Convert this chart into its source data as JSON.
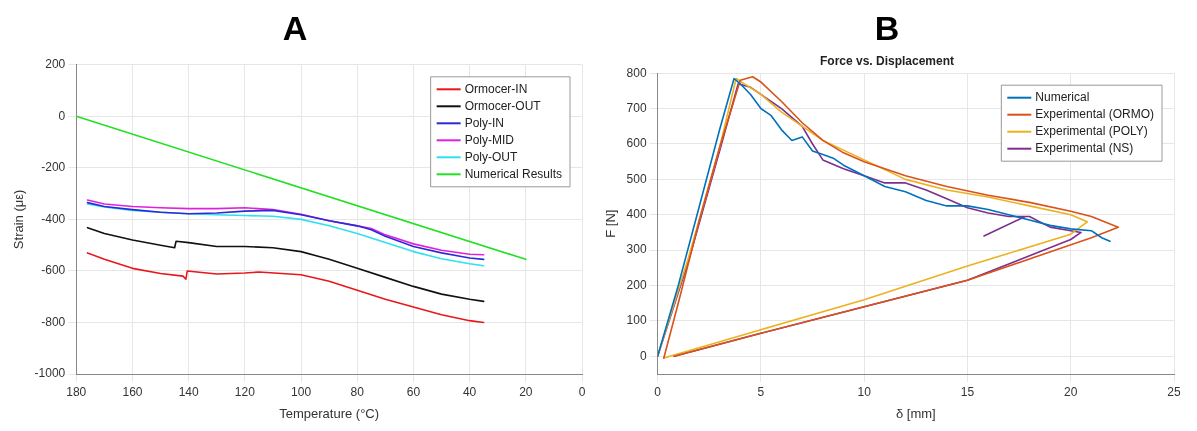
{
  "chart_data": [
    {
      "type": "line",
      "title": "A",
      "xlabel": "Temperature (°C)",
      "ylabel": "Strain (με)",
      "xlim": [
        180,
        0
      ],
      "xticks": [
        180,
        160,
        140,
        120,
        100,
        80,
        60,
        40,
        20,
        0
      ],
      "ylim": [
        -1000,
        200
      ],
      "yticks": [
        -1000,
        -800,
        -600,
        -400,
        -200,
        0,
        200
      ],
      "grid": true,
      "legend": "top right",
      "marker": "none",
      "line_style": "solid",
      "series": [
        {
          "name": "Ormocer-IN",
          "color": "#e8171c",
          "x": [
            176,
            170,
            160,
            150,
            142,
            141,
            140.5,
            130,
            120,
            115,
            100,
            90,
            80,
            70,
            60,
            50,
            40,
            35
          ],
          "values": [
            -530,
            -555,
            -590,
            -610,
            -620,
            -632,
            -600,
            -612,
            -608,
            -604,
            -615,
            -640,
            -675,
            -710,
            -740,
            -770,
            -793,
            -800
          ]
        },
        {
          "name": "Ormocer-OUT",
          "color": "#111111",
          "x": [
            176,
            170,
            160,
            150,
            145,
            144.5,
            140,
            130,
            120,
            110,
            100,
            90,
            80,
            70,
            60,
            50,
            40,
            35
          ],
          "values": [
            -432,
            -455,
            -480,
            -500,
            -510,
            -485,
            -490,
            -505,
            -505,
            -510,
            -525,
            -555,
            -590,
            -625,
            -660,
            -690,
            -710,
            -718
          ]
        },
        {
          "name": "Poly-IN",
          "color": "#2b2bd6",
          "x": [
            176,
            170,
            160,
            150,
            140,
            130,
            120,
            110,
            100,
            90,
            80,
            75,
            70,
            60,
            50,
            40,
            35
          ],
          "values": [
            -335,
            -350,
            -362,
            -372,
            -378,
            -375,
            -368,
            -365,
            -382,
            -405,
            -425,
            -440,
            -465,
            -505,
            -530,
            -550,
            -555
          ]
        },
        {
          "name": "Poly-MID",
          "color": "#e020e0",
          "x": [
            176,
            170,
            160,
            150,
            140,
            130,
            120,
            110,
            100,
            90,
            80,
            75,
            70,
            60,
            50,
            40,
            35
          ],
          "values": [
            -325,
            -340,
            -350,
            -355,
            -358,
            -358,
            -355,
            -362,
            -380,
            -405,
            -425,
            -435,
            -460,
            -495,
            -520,
            -535,
            -537
          ]
        },
        {
          "name": "Poly-OUT",
          "color": "#2fe0f0",
          "x": [
            176,
            170,
            160,
            150,
            140,
            130,
            120,
            110,
            100,
            90,
            80,
            70,
            60,
            50,
            40,
            35
          ],
          "values": [
            -340,
            -352,
            -365,
            -372,
            -378,
            -382,
            -385,
            -388,
            -400,
            -425,
            -455,
            -490,
            -525,
            -553,
            -572,
            -580
          ]
        },
        {
          "name": "Numerical Results",
          "color": "#22e022",
          "x": [
            180,
            20
          ],
          "values": [
            0,
            -555
          ]
        }
      ]
    },
    {
      "type": "line",
      "title": "B",
      "subtitle": "Force vs. Displacement",
      "xlabel": "δ [mm]",
      "ylabel": "F [N]",
      "xlim": [
        0,
        25
      ],
      "xticks": [
        0,
        5,
        10,
        15,
        20,
        25
      ],
      "ylim": [
        -50,
        800
      ],
      "yticks": [
        0,
        100,
        200,
        300,
        400,
        500,
        600,
        700,
        800
      ],
      "grid": true,
      "legend": "top right",
      "marker": "none",
      "line_style": "solid",
      "series": [
        {
          "name": "Numerical",
          "color": "#0072bd",
          "x": [
            0,
            1,
            2,
            3,
            3.7,
            4,
            4.5,
            5,
            5.5,
            6,
            6.5,
            7,
            7.5,
            8,
            8.5,
            9,
            10,
            11,
            12,
            13,
            14,
            15,
            16,
            17,
            18,
            19,
            20,
            21,
            21.5,
            21.9
          ],
          "values": [
            0,
            200,
            420,
            640,
            785,
            770,
            740,
            700,
            680,
            640,
            610,
            620,
            580,
            570,
            560,
            540,
            510,
            480,
            465,
            440,
            425,
            425,
            415,
            400,
            385,
            370,
            360,
            355,
            335,
            325
          ]
        },
        {
          "name": "Experimental (ORMO)",
          "color": "#d95319",
          "x": [
            0.3,
            1,
            2,
            3,
            4,
            4.6,
            5,
            6,
            7,
            8,
            9,
            10,
            12,
            14,
            16,
            18,
            20,
            21,
            22.3,
            21,
            15,
            10,
            5,
            0.8
          ],
          "values": [
            -5,
            150,
            380,
            590,
            780,
            790,
            775,
            720,
            660,
            610,
            575,
            550,
            510,
            480,
            455,
            435,
            410,
            395,
            365,
            335,
            215,
            140,
            65,
            0
          ]
        },
        {
          "name": "Experimental (POLY)",
          "color": "#edb120",
          "x": [
            0,
            1.5,
            3,
            3.8,
            4.2,
            5,
            6,
            8,
            10,
            12,
            14,
            16,
            18,
            20,
            20.8,
            20,
            15,
            10,
            5,
            0.3
          ],
          "values": [
            0,
            280,
            590,
            785,
            770,
            740,
            690,
            610,
            555,
            500,
            470,
            450,
            425,
            400,
            380,
            345,
            255,
            160,
            75,
            -5
          ]
        },
        {
          "name": "Experimental (NS)",
          "color": "#7e2f8e",
          "x": [
            0,
            1.5,
            3,
            3.9,
            4.5,
            5,
            6,
            7,
            7.5,
            8,
            9,
            10,
            11,
            12,
            13,
            14,
            15,
            16,
            17,
            18,
            19,
            20,
            20.5,
            20,
            15,
            10,
            5,
            0.8,
            17,
            17.8,
            15.8
          ],
          "values": [
            0,
            270,
            580,
            770,
            760,
            740,
            700,
            650,
            600,
            555,
            530,
            510,
            490,
            490,
            470,
            445,
            420,
            405,
            395,
            395,
            365,
            355,
            350,
            330,
            215,
            140,
            65,
            0,
            null,
            395,
            340
          ]
        }
      ]
    }
  ]
}
